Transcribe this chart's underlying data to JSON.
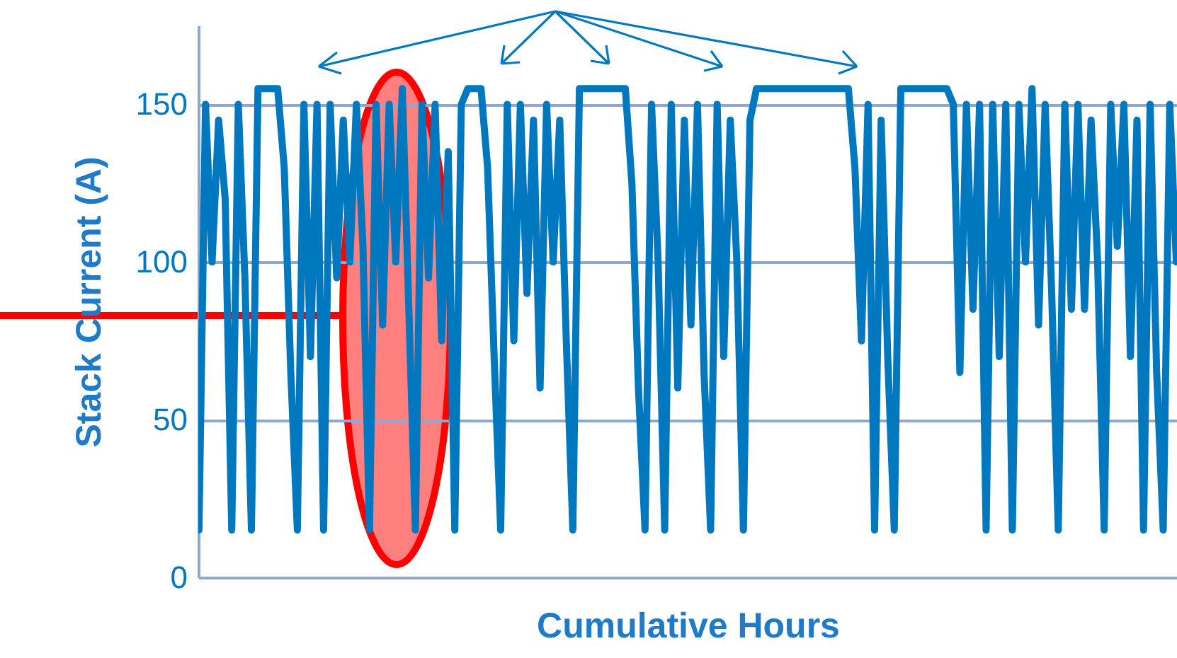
{
  "chart_data": {
    "type": "line",
    "xlabel": "Cumulative Hours",
    "ylabel": "Stack Current  (A)",
    "categories": [
      null,
      null,
      null,
      null,
      null,
      null,
      null,
      null,
      null,
      null,
      null,
      null,
      null,
      null,
      null,
      null,
      null,
      null,
      null,
      null,
      null,
      null,
      null,
      null,
      null,
      null,
      null,
      null,
      null,
      null,
      null,
      null,
      null,
      null,
      null,
      null,
      null,
      null,
      null,
      null,
      null,
      null,
      null,
      null,
      null,
      null,
      null,
      null,
      null,
      null,
      null,
      null,
      null,
      null,
      null,
      null,
      null,
      null,
      null,
      null,
      null,
      null,
      null,
      null,
      null,
      null,
      null,
      null,
      null,
      null,
      null,
      null,
      null,
      null,
      null,
      null,
      null,
      null,
      null,
      null,
      null,
      null,
      null,
      null,
      null,
      null,
      null,
      null,
      null,
      null,
      null,
      null,
      null,
      null,
      null,
      null,
      null,
      null,
      null,
      null,
      null,
      null,
      null,
      null,
      null,
      null,
      null,
      null,
      null,
      null,
      null,
      null,
      null,
      null,
      null,
      null,
      null,
      null,
      null,
      null,
      null,
      null,
      null,
      null,
      null,
      null,
      null,
      null,
      null,
      null,
      null,
      null,
      null,
      null,
      null,
      null,
      null,
      null,
      null,
      null,
      null,
      null,
      null,
      null,
      null,
      null,
      null,
      null,
      null,
      null
    ],
    "series": [
      {
        "color": "#0078c0",
        "values": [
          15,
          150,
          100,
          145,
          120,
          15,
          150,
          95,
          15,
          155,
          155,
          155,
          155,
          130,
          65,
          15,
          150,
          70,
          150,
          15,
          150,
          95,
          145,
          100,
          150,
          105,
          15,
          150,
          80,
          150,
          100,
          155,
          85,
          15,
          150,
          95,
          150,
          75,
          135,
          15,
          150,
          155,
          155,
          155,
          130,
          70,
          15,
          150,
          75,
          150,
          90,
          145,
          60,
          150,
          100,
          145,
          75,
          15,
          155,
          155,
          155,
          155,
          155,
          155,
          155,
          155,
          125,
          60,
          15,
          150,
          100,
          15,
          150,
          60,
          145,
          80,
          150,
          65,
          15,
          150,
          70,
          145,
          100,
          15,
          145,
          155,
          155,
          155,
          155,
          155,
          155,
          155,
          155,
          155,
          155,
          155,
          155,
          155,
          155,
          155,
          130,
          75,
          150,
          15,
          145,
          70,
          15,
          155,
          155,
          155,
          155,
          155,
          155,
          155,
          155,
          150,
          65,
          150,
          85,
          150,
          15,
          150,
          70,
          150,
          15,
          150,
          100,
          155,
          80,
          150,
          90,
          15,
          150,
          85,
          150,
          85,
          145,
          100,
          15,
          150,
          105,
          150,
          70,
          145,
          15,
          150,
          65,
          15,
          150,
          100
        ]
      }
    ],
    "ylim": [
      0,
      175
    ],
    "yticks": [
      0,
      50,
      100,
      150
    ],
    "grid": "y",
    "tick_labels": "y"
  }
}
